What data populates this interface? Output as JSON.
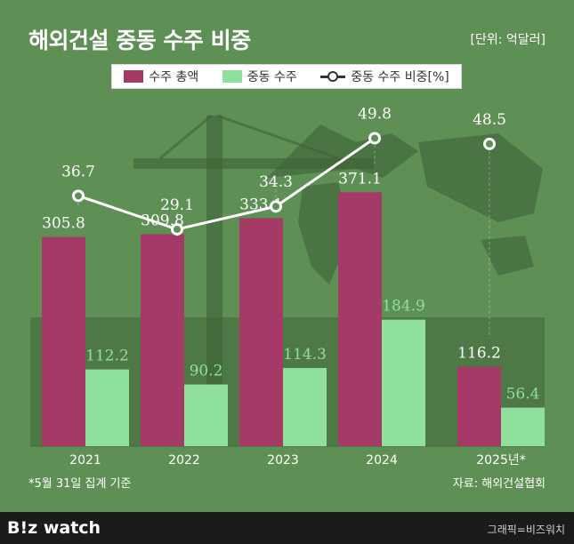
{
  "header": {
    "title": "해외건설 중동 수주 비중",
    "unit": "[단위: 억달러]"
  },
  "legend": {
    "total": "수주 총액",
    "mideast": "중동 수주",
    "share": "중동 수주 비중[%]"
  },
  "colors": {
    "background": "#5e8f55",
    "panel": "#4e7846",
    "total_bar": "#a63a66",
    "mideast_bar": "#8ee09c",
    "line": "#ffffff"
  },
  "chart_data": {
    "type": "bar",
    "categories": [
      "2021",
      "2022",
      "2023",
      "2024",
      "2025년*"
    ],
    "series": [
      {
        "name": "수주 총액",
        "type": "bar",
        "values": [
          305.8,
          309.8,
          333.1,
          371.1,
          116.2
        ]
      },
      {
        "name": "중동 수주",
        "type": "bar",
        "values": [
          112.2,
          90.2,
          114.3,
          184.9,
          56.4
        ]
      },
      {
        "name": "중동 수주 비중[%]",
        "type": "line",
        "values": [
          36.7,
          29.1,
          34.3,
          49.8,
          48.5
        ]
      }
    ],
    "value_labels": {
      "total": [
        "305.8",
        "309.8",
        "333.1",
        "371.1",
        "116.2"
      ],
      "mideast": [
        "112.2",
        "90.2",
        "114.3",
        "184.9",
        "56.4"
      ],
      "share": [
        "36.7",
        "29.1",
        "34.3",
        "49.8",
        "48.5"
      ]
    },
    "ylim_bars": [
      0,
      500
    ],
    "ylim_share": [
      0,
      100
    ],
    "line_connects_through": 4
  },
  "notes": {
    "footnote": "*5월 31일 집계 기준",
    "source": "자료: 해외건설협회"
  },
  "footer": {
    "logo": "B!z watch",
    "credit": "그래픽=비즈워치"
  }
}
